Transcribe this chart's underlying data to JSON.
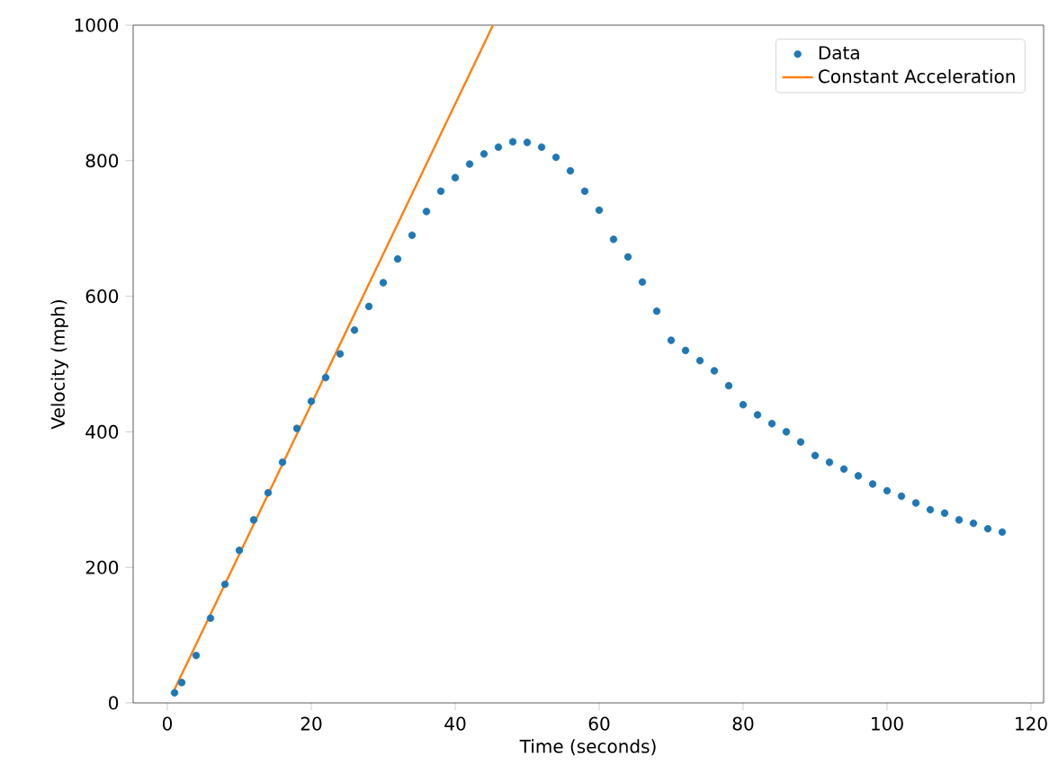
{
  "chart_data": {
    "type": "scatter",
    "xlabel": "Time (seconds)",
    "ylabel": "Velocity (mph)",
    "xlim": [
      -4.75,
      121.75
    ],
    "ylim": [
      0,
      1000
    ],
    "xticks": [
      0,
      20,
      40,
      60,
      80,
      100,
      120
    ],
    "yticks": [
      0,
      200,
      400,
      600,
      800,
      1000
    ],
    "legend": "top right",
    "series": [
      {
        "name": "Data",
        "marker": "circle",
        "color": "#1f77b4",
        "x": [
          1,
          2,
          4,
          6,
          8,
          10,
          12,
          14,
          16,
          18,
          20,
          22,
          24,
          26,
          28,
          30,
          32,
          34,
          36,
          38,
          40,
          42,
          44,
          46,
          48,
          50,
          52,
          54,
          56,
          58,
          60,
          62,
          64,
          66,
          68,
          70,
          72,
          74,
          76,
          78,
          80,
          82,
          84,
          86,
          88,
          90,
          92,
          94,
          96,
          98,
          100,
          102,
          104,
          106,
          108,
          110,
          112,
          114,
          116
        ],
        "values": [
          15,
          30,
          70,
          125,
          175,
          225,
          270,
          310,
          355,
          405,
          445,
          480,
          515,
          550,
          585,
          620,
          655,
          690,
          725,
          755,
          775,
          795,
          810,
          820,
          828,
          827,
          820,
          805,
          785,
          755,
          727,
          684,
          658,
          621,
          578,
          535,
          520,
          505,
          490,
          468,
          440,
          425,
          412,
          400,
          385,
          365,
          355,
          345,
          335,
          323,
          313,
          305,
          295,
          285,
          280,
          270,
          265,
          257,
          252
        ]
      },
      {
        "name": "Constant Acceleration",
        "type": "line",
        "color": "#ff7f0e",
        "x": [
          1,
          45.25
        ],
        "values": [
          20,
          1000
        ]
      }
    ]
  }
}
